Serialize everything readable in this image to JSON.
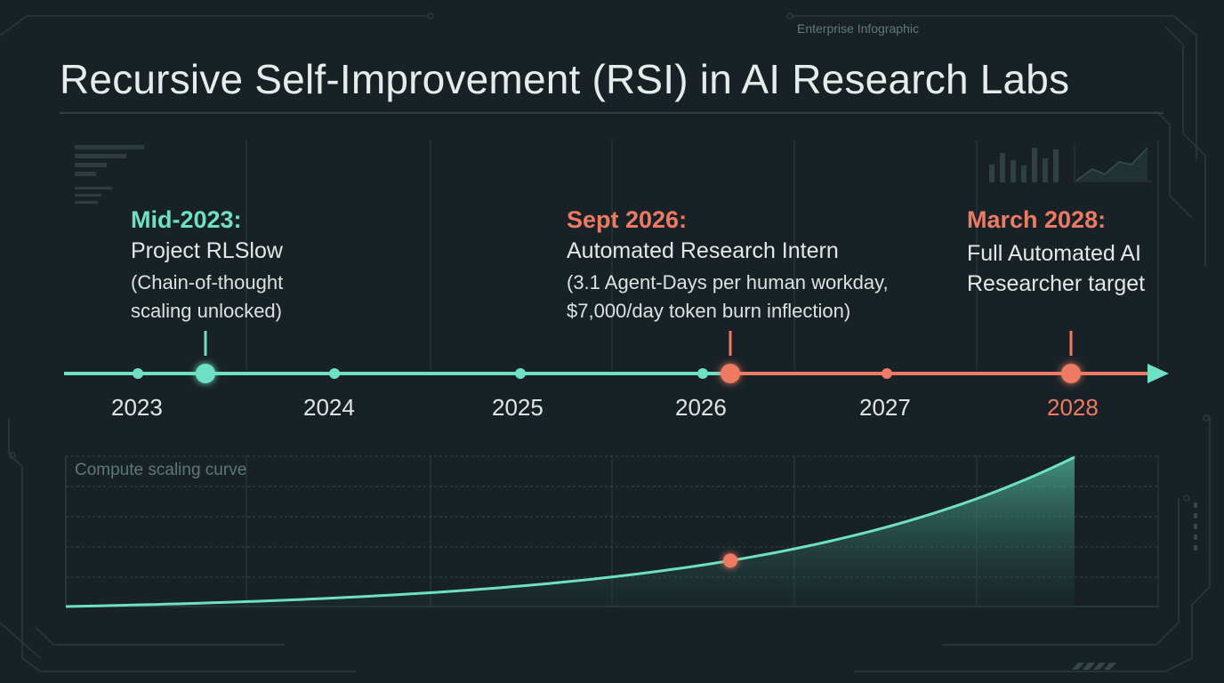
{
  "header": {
    "supertitle": "Enterprise Infographic",
    "title": "Recursive Self-Improvement (RSI) in AI Research Labs"
  },
  "timeline": {
    "years": [
      "2023",
      "2024",
      "2025",
      "2026",
      "2027",
      "2028"
    ],
    "highlighted_year": "2028",
    "events": [
      {
        "date": "Mid-2023:",
        "name": "Project RLSlow",
        "description": "(Chain-of-thought\nscaling unlocked)",
        "color": "#6ee0c4"
      },
      {
        "date": "Sept 2026:",
        "name": "Automated Research Intern",
        "description": "(3.1 Agent-Days per human workday,\n$7,000/day token burn inflection)",
        "color": "#ef7a64"
      },
      {
        "date": "March 2028:",
        "name": "Full Automated AI\nResearcher target",
        "description": "",
        "color": "#ef7a64"
      }
    ]
  },
  "chart_data": {
    "type": "area",
    "title": "Compute scaling curve",
    "shape": "exponential",
    "highlight": "inflection point at Sept 2026",
    "x_range": [
      "2023",
      "2028"
    ],
    "grid": true
  },
  "colors": {
    "background": "#182226",
    "accent_teal": "#6ee0c4",
    "accent_coral": "#ef7a64",
    "grid": "#2e3d40"
  }
}
